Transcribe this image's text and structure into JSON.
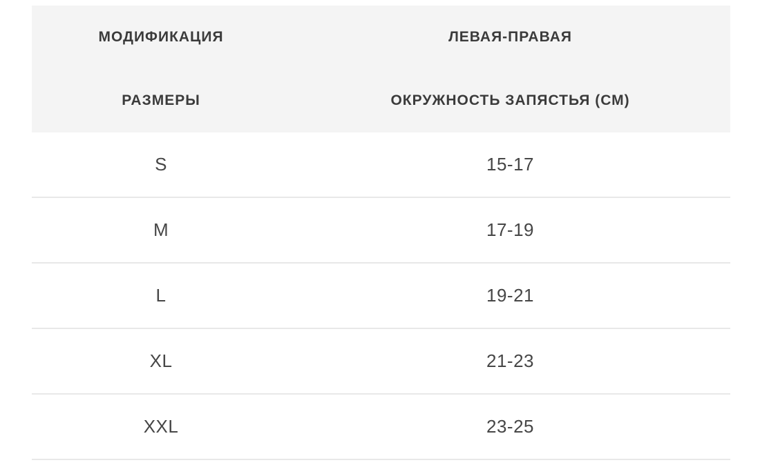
{
  "colors": {
    "page_bg": "#ffffff",
    "header_bg": "#f4f4f4",
    "header_text": "#3b3b3b",
    "body_text": "#464646",
    "divider": "#e8e8e8"
  },
  "table": {
    "header": {
      "modification_label": "МОДИФИКАЦИЯ",
      "sizes_label": "РАЗМЕРЫ",
      "left_right_label": "ЛЕВАЯ-ПРАВАЯ",
      "wrist_circumference_label": "ОКРУЖНОСТЬ ЗАПЯСТЬЯ (СМ)"
    },
    "rows": [
      {
        "size": "S",
        "wrist_cm": "15-17"
      },
      {
        "size": "M",
        "wrist_cm": "17-19"
      },
      {
        "size": "L",
        "wrist_cm": "19-21"
      },
      {
        "size": "XL",
        "wrist_cm": "21-23"
      },
      {
        "size": "XXL",
        "wrist_cm": "23-25"
      }
    ]
  }
}
